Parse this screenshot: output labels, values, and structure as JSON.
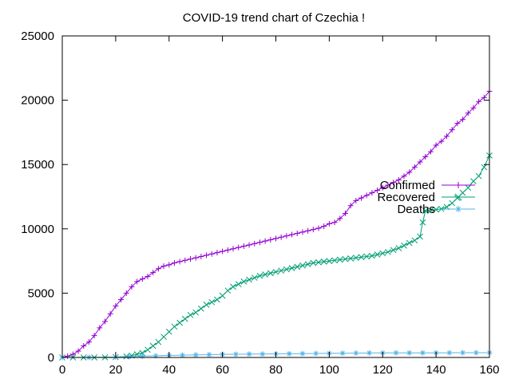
{
  "chart_data": {
    "type": "line",
    "title": "COVID-19 trend chart of Czechia !",
    "xlabel": "",
    "ylabel": "",
    "xlim": [
      0,
      160
    ],
    "ylim": [
      0,
      25000
    ],
    "xticks": [
      0,
      20,
      40,
      60,
      80,
      100,
      120,
      140,
      160
    ],
    "yticks": [
      0,
      5000,
      10000,
      15000,
      20000,
      25000
    ],
    "grid": false,
    "legend": "top-right",
    "series": [
      {
        "name": "Confirmed",
        "color": "#9400d3",
        "marker": "plus",
        "x": [
          0,
          2,
          4,
          6,
          8,
          10,
          12,
          14,
          16,
          18,
          20,
          22,
          24,
          26,
          28,
          30,
          32,
          34,
          36,
          38,
          40,
          42,
          44,
          46,
          48,
          50,
          52,
          54,
          56,
          58,
          60,
          62,
          64,
          66,
          68,
          70,
          72,
          74,
          76,
          78,
          80,
          82,
          84,
          86,
          88,
          90,
          92,
          94,
          96,
          98,
          100,
          102,
          104,
          106,
          108,
          110,
          112,
          114,
          116,
          118,
          120,
          122,
          124,
          126,
          128,
          130,
          132,
          134,
          136,
          138,
          140,
          142,
          144,
          146,
          148,
          150,
          152,
          154,
          156,
          158,
          160
        ],
        "values": [
          0,
          100,
          250,
          500,
          900,
          1200,
          1700,
          2300,
          2800,
          3400,
          4000,
          4500,
          5000,
          5500,
          5900,
          6100,
          6300,
          6600,
          6900,
          7100,
          7200,
          7350,
          7450,
          7550,
          7650,
          7750,
          7850,
          7950,
          8050,
          8150,
          8250,
          8350,
          8450,
          8550,
          8650,
          8750,
          8850,
          8950,
          9050,
          9150,
          9250,
          9350,
          9450,
          9550,
          9650,
          9750,
          9850,
          9950,
          10050,
          10200,
          10400,
          10500,
          10800,
          11200,
          11800,
          12200,
          12400,
          12600,
          12800,
          13000,
          13200,
          13400,
          13600,
          13800,
          14100,
          14400,
          14800,
          15200,
          15600,
          16000,
          16500,
          16800,
          17200,
          17700,
          18200,
          18500,
          19000,
          19400,
          19900,
          20200,
          20700
        ]
      },
      {
        "name": "Recovered",
        "color": "#009e73",
        "marker": "cross",
        "x": [
          0,
          4,
          8,
          12,
          16,
          20,
          24,
          26,
          28,
          30,
          32,
          34,
          36,
          38,
          40,
          42,
          44,
          46,
          48,
          50,
          52,
          54,
          56,
          58,
          60,
          62,
          64,
          66,
          68,
          70,
          72,
          74,
          76,
          78,
          80,
          82,
          84,
          86,
          88,
          90,
          92,
          94,
          96,
          98,
          100,
          102,
          104,
          106,
          108,
          110,
          112,
          114,
          116,
          118,
          120,
          122,
          124,
          126,
          128,
          130,
          132,
          134,
          135,
          136,
          138,
          140,
          142,
          144,
          146,
          148,
          150,
          152,
          154,
          156,
          158,
          160
        ],
        "values": [
          0,
          0,
          0,
          0,
          10,
          30,
          80,
          150,
          250,
          350,
          600,
          900,
          1200,
          1600,
          2000,
          2400,
          2700,
          3000,
          3300,
          3500,
          3800,
          4100,
          4300,
          4500,
          4800,
          5200,
          5500,
          5700,
          5900,
          6050,
          6200,
          6350,
          6450,
          6550,
          6650,
          6750,
          6850,
          6950,
          7050,
          7150,
          7250,
          7350,
          7400,
          7450,
          7500,
          7550,
          7600,
          7650,
          7700,
          7750,
          7800,
          7850,
          7900,
          8000,
          8100,
          8200,
          8350,
          8500,
          8700,
          8900,
          9100,
          9400,
          10500,
          11400,
          11450,
          11500,
          11550,
          11700,
          12000,
          12400,
          12800,
          13200,
          13700,
          14100,
          14800,
          15700
        ]
      },
      {
        "name": "Deaths",
        "color": "#56b4e9",
        "marker": "star",
        "x": [
          0,
          10,
          20,
          25,
          30,
          35,
          40,
          45,
          50,
          55,
          60,
          65,
          70,
          75,
          80,
          85,
          90,
          95,
          100,
          105,
          110,
          115,
          120,
          125,
          130,
          135,
          140,
          145,
          150,
          155,
          160
        ],
        "values": [
          0,
          5,
          30,
          60,
          100,
          130,
          160,
          180,
          200,
          220,
          240,
          250,
          260,
          270,
          280,
          290,
          300,
          310,
          320,
          330,
          340,
          350,
          355,
          360,
          360,
          360,
          360,
          365,
          370,
          370,
          375
        ]
      }
    ]
  }
}
